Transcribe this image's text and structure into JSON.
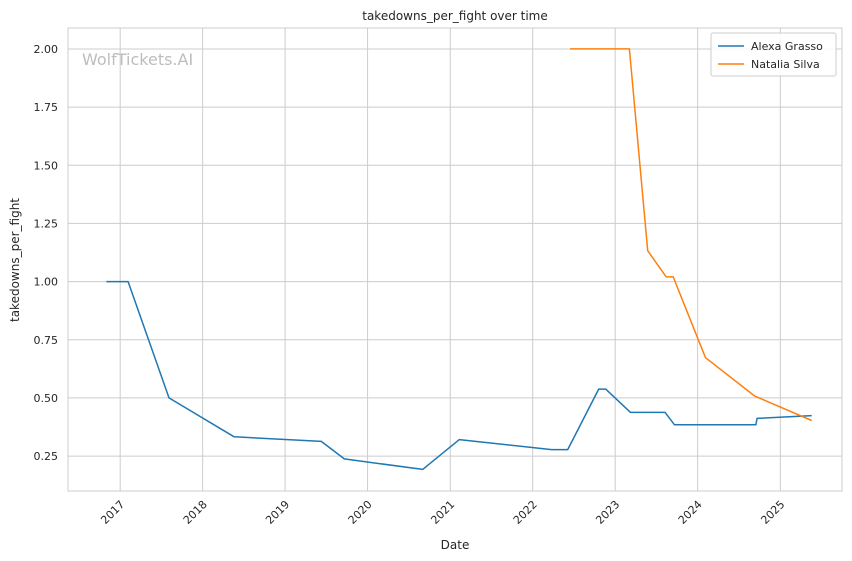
{
  "chart_data": {
    "type": "line",
    "title": "takedowns_per_fight over time",
    "xlabel": "Date",
    "ylabel": "takedowns_per_fight",
    "watermark": "WolfTickets.AI",
    "x_axis_type": "date",
    "xlim": [
      "2016-05-15",
      "2025-10-01"
    ],
    "ylim": [
      0.1,
      2.09
    ],
    "x_ticks": [
      "2017-01-01",
      "2018-01-01",
      "2019-01-01",
      "2020-01-01",
      "2021-01-01",
      "2022-01-01",
      "2023-01-01",
      "2024-01-01",
      "2025-01-01"
    ],
    "x_tick_labels": [
      "2017",
      "2018",
      "2019",
      "2020",
      "2021",
      "2022",
      "2023",
      "2024",
      "2025"
    ],
    "x_tick_rotation": 45,
    "y_ticks": [
      0.25,
      0.5,
      0.75,
      1.0,
      1.25,
      1.5,
      1.75,
      2.0
    ],
    "y_tick_labels": [
      "0.25",
      "0.50",
      "0.75",
      "1.00",
      "1.25",
      "1.50",
      "1.75",
      "2.00"
    ],
    "grid": true,
    "legend_position": "top-right",
    "series": [
      {
        "name": "Alexa Grasso",
        "color": "#1f77b4",
        "points": [
          [
            "2016-11-01",
            1.0
          ],
          [
            "2017-02-05",
            1.0
          ],
          [
            "2017-08-05",
            0.5
          ],
          [
            "2018-05-20",
            0.333
          ],
          [
            "2019-06-10",
            0.313
          ],
          [
            "2019-09-20",
            0.238
          ],
          [
            "2020-09-01",
            0.193
          ],
          [
            "2021-02-10",
            0.321
          ],
          [
            "2022-03-25",
            0.278
          ],
          [
            "2022-06-05",
            0.278
          ],
          [
            "2022-10-20",
            0.538
          ],
          [
            "2022-11-20",
            0.538
          ],
          [
            "2023-03-10",
            0.438
          ],
          [
            "2023-08-10",
            0.438
          ],
          [
            "2023-09-20",
            0.385
          ],
          [
            "2024-09-15",
            0.385
          ],
          [
            "2024-09-20",
            0.412
          ],
          [
            "2025-05-20",
            0.424
          ]
        ]
      },
      {
        "name": "Natalia Silva",
        "color": "#ff7f0e",
        "points": [
          [
            "2022-06-15",
            2.0
          ],
          [
            "2023-03-05",
            2.0
          ],
          [
            "2023-05-25",
            1.133
          ],
          [
            "2023-08-15",
            1.02
          ],
          [
            "2023-09-15",
            1.02
          ],
          [
            "2024-02-05",
            0.673
          ],
          [
            "2024-09-10",
            0.508
          ],
          [
            "2025-05-20",
            0.403
          ]
        ]
      }
    ]
  }
}
